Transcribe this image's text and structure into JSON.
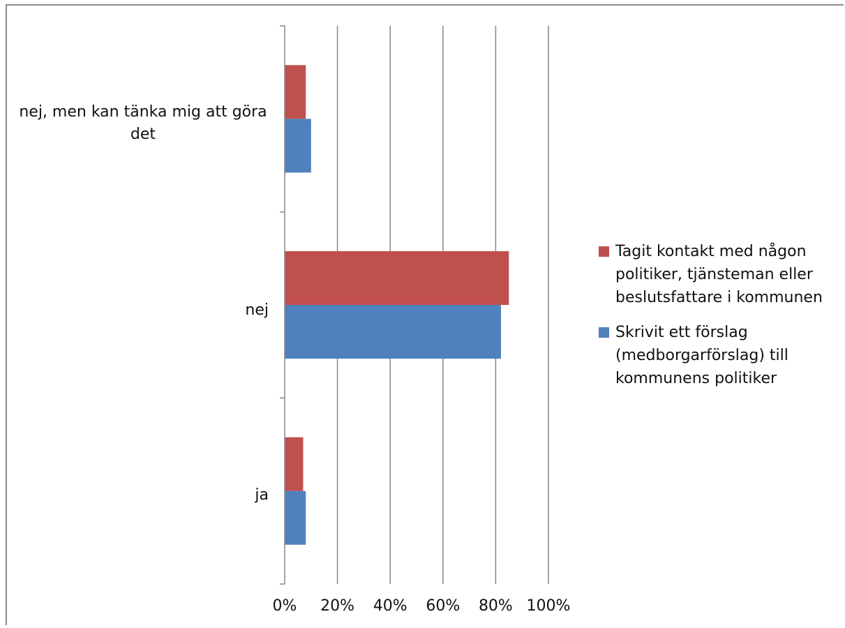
{
  "chart_data": {
    "type": "bar",
    "orientation": "horizontal",
    "categories": [
      "nej, men kan tänka mig att göra det",
      "nej",
      "ja"
    ],
    "series": [
      {
        "name": "Tagit kontakt med någon politiker, tjänsteman eller beslutsfattare i kommunen",
        "color": "#c0504d",
        "values": [
          8,
          85,
          7
        ]
      },
      {
        "name": "Skrivit ett förslag (medborgarförslag) till kommunens politiker",
        "color": "#4f81bd",
        "values": [
          10,
          82,
          8
        ]
      }
    ],
    "xticks": [
      "0%",
      "20%",
      "40%",
      "60%",
      "80%",
      "100%"
    ],
    "xlim": [
      0,
      100
    ],
    "grid": true,
    "legend_position": "right"
  }
}
